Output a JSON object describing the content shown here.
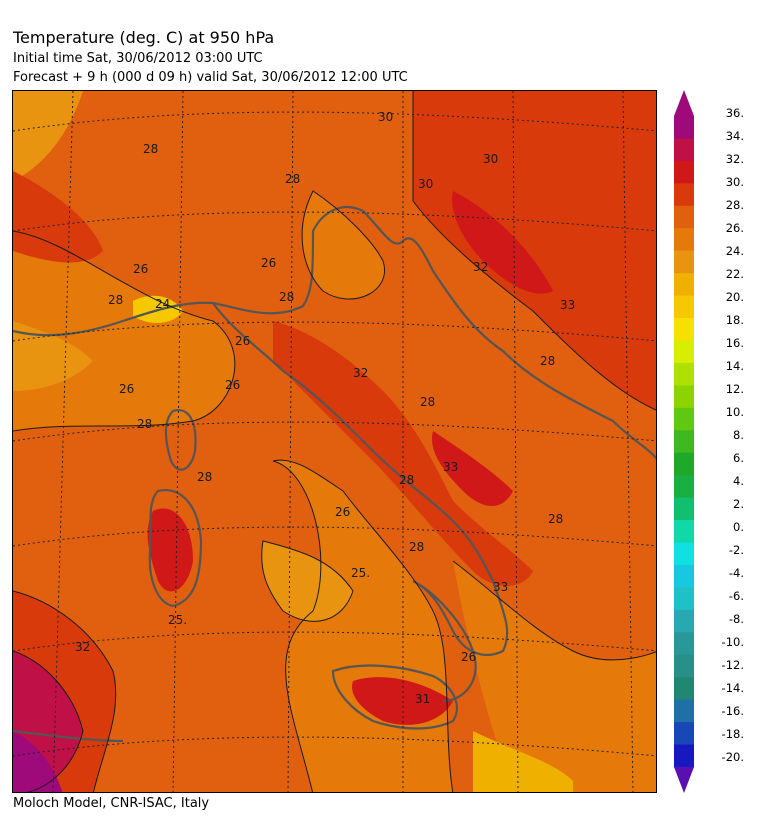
{
  "header": {
    "title": "Temperature (deg. C) at 950 hPa",
    "initial_time": "Initial time  Sat, 30/06/2012  03:00 UTC",
    "forecast": "Forecast  +   9 h  (000 d 09 h)  valid Sat, 30/06/2012 12:00 UTC"
  },
  "footer": {
    "credit": "Moloch Model, CNR-ISAC, Italy"
  },
  "map": {
    "contour_labels": [
      "30",
      "28",
      "30",
      "30",
      "28",
      "26",
      "26",
      "28",
      "32",
      "33",
      "24",
      "28",
      "26",
      "28",
      "32",
      "26",
      "28",
      "28",
      "26",
      "33",
      "28",
      "28",
      "26",
      "28",
      "28",
      "25.",
      "25.",
      "33",
      "26",
      "31",
      "32"
    ]
  },
  "colorbar": {
    "labels": [
      "36.",
      "34.",
      "32.",
      "30.",
      "28.",
      "26.",
      "24.",
      "22.",
      "20.",
      "18.",
      "16.",
      "14.",
      "12.",
      "10.",
      "8.",
      "6.",
      "4.",
      "2.",
      "0.",
      "-2.",
      "-4.",
      "-6.",
      "-8.",
      "-10.",
      "-12.",
      "-14.",
      "-16.",
      "-18.",
      "-20."
    ],
    "colors": [
      "#9e0a7a",
      "#c01048",
      "#d01818",
      "#d83a0c",
      "#e06010",
      "#e57a0a",
      "#e99410",
      "#f0b000",
      "#f5c800",
      "#f5e000",
      "#d8ee00",
      "#b0e000",
      "#8cd400",
      "#60c810",
      "#40b820",
      "#20a828",
      "#18b040",
      "#10c070",
      "#10d8a8",
      "#10e0e0",
      "#18c8e0",
      "#20c0c8",
      "#28a8b0",
      "#289898",
      "#289088",
      "#208870",
      "#2070a8",
      "#1848b8",
      "#1818c0"
    ],
    "top_color": "#9e0a7a",
    "bottom_color": "#5a10b0"
  }
}
